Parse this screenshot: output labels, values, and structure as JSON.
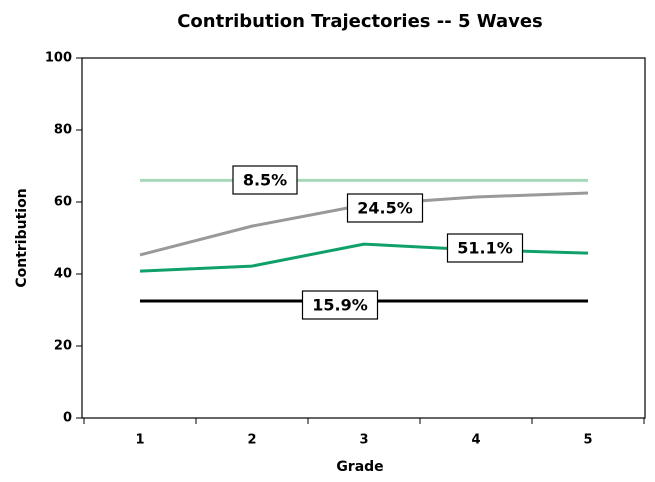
{
  "chart_data": {
    "type": "line",
    "title": "Contribution Trajectories -- 5 Waves",
    "x_label": "Grade",
    "y_label": "Contribution",
    "categories": [
      "1",
      "2",
      "3",
      "4",
      "5"
    ],
    "ylim": [
      0,
      100
    ],
    "yticks": [
      0,
      20,
      40,
      60,
      80,
      100
    ],
    "series": [
      {
        "name": "8.5%",
        "color": "#a8d8bc",
        "values": [
          66,
          66,
          66,
          66,
          66
        ]
      },
      {
        "name": "24.5%",
        "color": "#999999",
        "values": [
          45.3,
          53.3,
          59.2,
          61.4,
          62.5
        ]
      },
      {
        "name": "51.1%",
        "color": "#10a06a",
        "values": [
          40.8,
          42.2,
          48.3,
          46.7,
          45.8
        ]
      },
      {
        "name": "15.9%",
        "color": "#000000",
        "values": [
          32.5,
          32.5,
          32.5,
          32.5,
          32.5
        ]
      }
    ]
  }
}
